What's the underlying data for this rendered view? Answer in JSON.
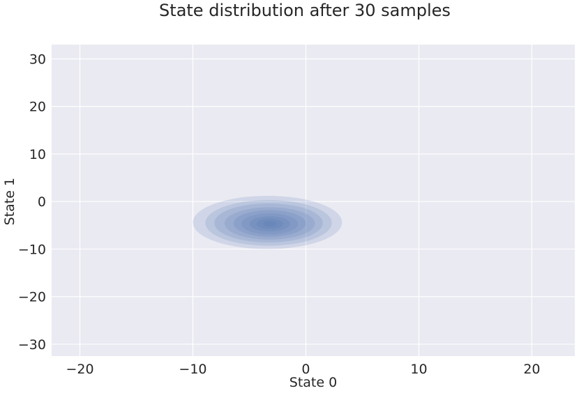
{
  "chart_data": {
    "type": "kde_contour",
    "title": "State distribution after 30 samples",
    "xlabel": "State 0",
    "ylabel": "State 1",
    "xlim": [
      -22.5,
      23.8
    ],
    "ylim": [
      -32.5,
      33
    ],
    "xticks": [
      -20,
      -10,
      0,
      10,
      20
    ],
    "yticks": [
      -30,
      -20,
      -10,
      0,
      10,
      20,
      30
    ],
    "xtick_labels": [
      "−20",
      "−10",
      "0",
      "10",
      "20"
    ],
    "ytick_labels": [
      "−30",
      "−20",
      "−10",
      "0",
      "10",
      "20",
      "30"
    ],
    "grid": true,
    "density_peak": {
      "x": -3.2,
      "y": -4.7
    },
    "contour_levels": [
      {
        "level": 1,
        "cx": -3.4,
        "cy": -4.4,
        "rx": 6.6,
        "ry": 5.6
      },
      {
        "level": 2,
        "cx": -3.3,
        "cy": -4.5,
        "rx": 5.6,
        "ry": 4.8
      },
      {
        "level": 3,
        "cx": -3.3,
        "cy": -4.5,
        "rx": 4.8,
        "ry": 4.1
      },
      {
        "level": 4,
        "cx": -3.2,
        "cy": -4.6,
        "rx": 4.0,
        "ry": 3.4
      },
      {
        "level": 5,
        "cx": -3.2,
        "cy": -4.6,
        "rx": 3.2,
        "ry": 2.8
      },
      {
        "level": 6,
        "cx": -3.2,
        "cy": -4.7,
        "rx": 2.5,
        "ry": 2.2
      },
      {
        "level": 7,
        "cx": -3.2,
        "cy": -4.7,
        "rx": 1.8,
        "ry": 1.6
      },
      {
        "level": 8,
        "cx": -3.2,
        "cy": -4.7,
        "rx": 1.2,
        "ry": 1.1
      },
      {
        "level": 9,
        "cx": -3.2,
        "cy": -4.7,
        "rx": 0.6,
        "ry": 0.6
      }
    ],
    "colors": {
      "background": "#eaeaf2",
      "grid": "#ffffff",
      "fill": "#4c72b0",
      "text": "#262626"
    }
  }
}
